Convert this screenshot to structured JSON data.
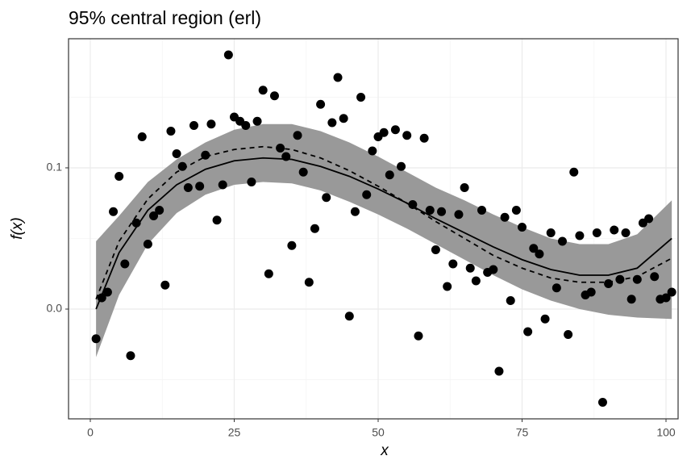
{
  "chart_data": {
    "type": "scatter",
    "title": "95% central region (erl)",
    "x_label": "x",
    "y_label": "f(x)",
    "xlim": [
      -3.78,
      102.1
    ],
    "ylim": [
      -0.0777,
      0.1914
    ],
    "xticks": [
      0,
      25,
      50,
      75,
      100
    ],
    "yticks": [
      {
        "value": 0,
        "label": "0.0"
      },
      {
        "value": 0.1,
        "label": "0.1"
      }
    ],
    "minor_xticks": [
      12.5,
      37.5,
      62.5,
      87.5
    ],
    "minor_yticks": [
      -0.05,
      0.05,
      0.15
    ],
    "grid": true,
    "point_color": "#000000",
    "line_color": "#000000",
    "band_color": "#999999",
    "points": {
      "x": [
        1,
        2,
        3,
        4,
        5,
        6,
        7,
        8,
        9,
        10,
        11,
        12,
        13,
        14,
        15,
        16,
        17,
        18,
        19,
        20,
        21,
        22,
        23,
        24,
        25,
        26,
        27,
        28,
        29,
        30,
        31,
        32,
        33,
        34,
        35,
        36,
        37,
        38,
        39,
        40,
        41,
        42,
        43,
        44,
        45,
        46,
        47,
        48,
        49,
        50,
        51,
        52,
        53,
        54,
        55,
        56,
        57,
        58,
        59,
        60,
        61,
        62,
        63,
        64,
        65,
        66,
        67,
        68,
        69,
        70,
        71,
        72,
        73,
        74,
        75,
        76,
        77,
        78,
        79,
        80,
        81,
        82,
        83,
        84,
        85,
        86,
        87,
        88,
        89,
        90,
        91,
        92,
        93,
        94,
        95,
        96,
        97,
        98,
        99,
        100,
        101
      ],
      "y": [
        -0.021,
        0.008,
        0.012,
        0.069,
        0.094,
        0.032,
        -0.033,
        0.061,
        0.122,
        0.046,
        0.066,
        0.07,
        0.017,
        0.126,
        0.11,
        0.101,
        0.086,
        0.13,
        0.087,
        0.109,
        0.131,
        0.063,
        0.088,
        0.18,
        0.136,
        0.133,
        0.13,
        0.09,
        0.133,
        0.155,
        0.025,
        0.151,
        0.114,
        0.108,
        0.045,
        0.123,
        0.097,
        0.019,
        0.057,
        0.145,
        0.079,
        0.132,
        0.164,
        0.135,
        -0.005,
        0.069,
        0.15,
        0.081,
        0.112,
        0.122,
        0.125,
        0.095,
        0.127,
        0.101,
        0.123,
        0.074,
        -0.019,
        0.121,
        0.07,
        0.042,
        0.069,
        0.016,
        0.032,
        0.067,
        0.086,
        0.029,
        0.02,
        0.07,
        0.026,
        0.028,
        -0.044,
        0.065,
        0.006,
        0.07,
        0.058,
        -0.016,
        0.043,
        0.039,
        -0.007,
        0.054,
        0.015,
        0.048,
        -0.018,
        0.097,
        0.052,
        0.01,
        0.012,
        0.054,
        -0.066,
        0.018,
        0.056,
        0.021,
        0.054,
        0.007,
        0.021,
        0.061,
        0.064,
        0.023,
        0.007,
        0.008,
        0.012
      ]
    },
    "curve_x": [
      1,
      5,
      10,
      15,
      20,
      25,
      30,
      35,
      40,
      45,
      50,
      55,
      60,
      65,
      70,
      75,
      80,
      85,
      90,
      95,
      101
    ],
    "solid": [
      0.0,
      0.04,
      0.07,
      0.088,
      0.099,
      0.105,
      0.107,
      0.106,
      0.101,
      0.094,
      0.085,
      0.075,
      0.064,
      0.054,
      0.044,
      0.035,
      0.028,
      0.024,
      0.024,
      0.029,
      0.05
    ],
    "dashed": [
      0.007,
      0.048,
      0.078,
      0.097,
      0.108,
      0.113,
      0.115,
      0.113,
      0.107,
      0.098,
      0.087,
      0.075,
      0.062,
      0.05,
      0.038,
      0.029,
      0.022,
      0.019,
      0.019,
      0.023,
      0.036
    ],
    "band_lower": [
      -0.034,
      0.01,
      0.046,
      0.068,
      0.081,
      0.088,
      0.09,
      0.089,
      0.084,
      0.076,
      0.067,
      0.057,
      0.046,
      0.035,
      0.024,
      0.014,
      0.006,
      0.0,
      -0.004,
      -0.006,
      -0.007
    ],
    "band_upper": [
      0.048,
      0.066,
      0.09,
      0.106,
      0.118,
      0.127,
      0.131,
      0.131,
      0.126,
      0.118,
      0.108,
      0.097,
      0.086,
      0.077,
      0.067,
      0.058,
      0.05,
      0.046,
      0.046,
      0.053,
      0.077
    ]
  }
}
